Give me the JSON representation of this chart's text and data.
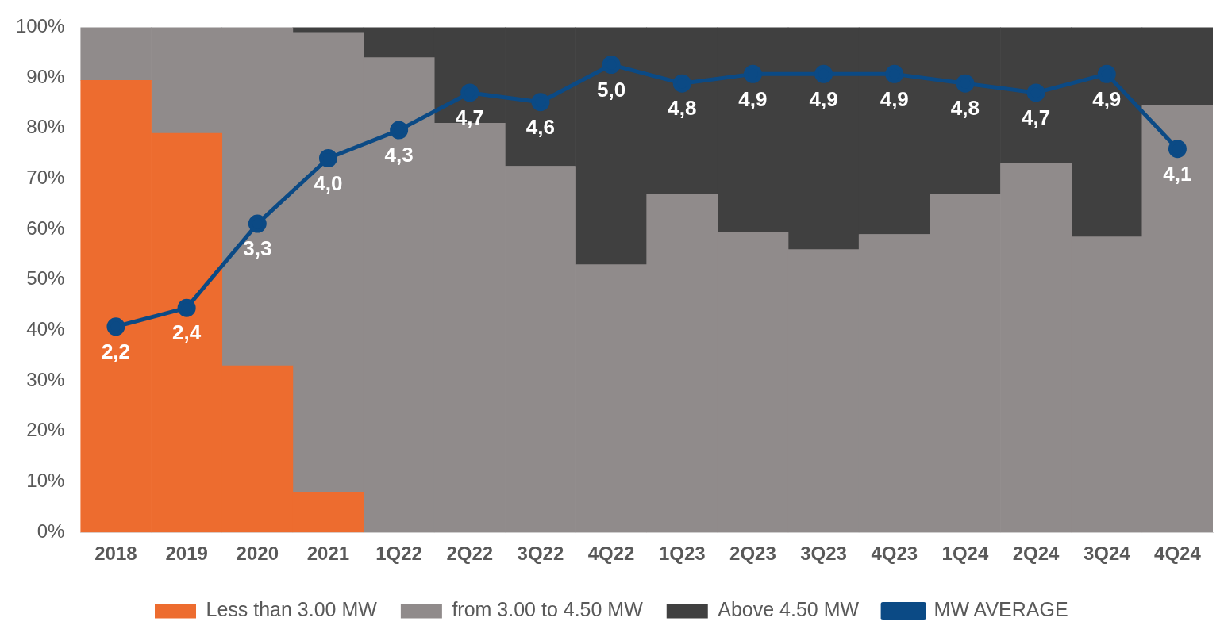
{
  "chart_data": {
    "type": "bar",
    "stacked": true,
    "categories": [
      "2018",
      "2019",
      "2020",
      "2021",
      "1Q22",
      "2Q22",
      "3Q22",
      "4Q22",
      "1Q23",
      "2Q23",
      "3Q23",
      "4Q23",
      "1Q24",
      "2Q24",
      "3Q24",
      "4Q24"
    ],
    "series": [
      {
        "name": "Less than 3.00 MW",
        "color": "#ed6c2f",
        "values": [
          89.5,
          79,
          33,
          8,
          null,
          null,
          null,
          null,
          null,
          null,
          null,
          null,
          null,
          null,
          null,
          null
        ]
      },
      {
        "name": "from 3.00 to 4.50 MW",
        "color": "#908b8b",
        "values": [
          10.5,
          21,
          67,
          91,
          94,
          81,
          72.5,
          53,
          67,
          59.5,
          56,
          59,
          67,
          73,
          58.5,
          84.5
        ]
      },
      {
        "name": "Above 4.50 MW",
        "color": "#404040",
        "values": [
          null,
          null,
          null,
          1,
          6,
          19,
          27.5,
          47,
          33,
          40.5,
          44,
          41,
          33,
          27,
          41.5,
          15.5
        ]
      },
      {
        "name": "MW AVERAGE",
        "type": "line",
        "axis": "y2",
        "color": "#0b4a85",
        "marker": "circle",
        "values": [
          2.2,
          2.4,
          3.3,
          4.0,
          4.3,
          4.7,
          4.6,
          5.0,
          4.8,
          4.9,
          4.9,
          4.9,
          4.8,
          4.7,
          4.9,
          4.1
        ],
        "value_labels": [
          "2,2",
          "2,4",
          "3,3",
          "4,0",
          "4,3",
          "4,7",
          "4,6",
          "5,0",
          "4,8",
          "4,9",
          "4,9",
          "4,9",
          "4,8",
          "4,7",
          "4,9",
          "4,1"
        ]
      }
    ],
    "ylim": [
      0,
      100
    ],
    "yticks": [
      {
        "value": 0,
        "label": "0%"
      },
      {
        "value": 10,
        "label": "10%"
      },
      {
        "value": 20,
        "label": "20%"
      },
      {
        "value": 30,
        "label": "30%"
      },
      {
        "value": 40,
        "label": "40%"
      },
      {
        "value": 50,
        "label": "50%"
      },
      {
        "value": 60,
        "label": "60%"
      },
      {
        "value": 70,
        "label": "70%"
      },
      {
        "value": 80,
        "label": "80%"
      },
      {
        "value": 90,
        "label": "90%"
      },
      {
        "value": 100,
        "label": "100%"
      }
    ],
    "y2lim": [
      0,
      5.4
    ],
    "grid": false,
    "legend": "bottom"
  }
}
